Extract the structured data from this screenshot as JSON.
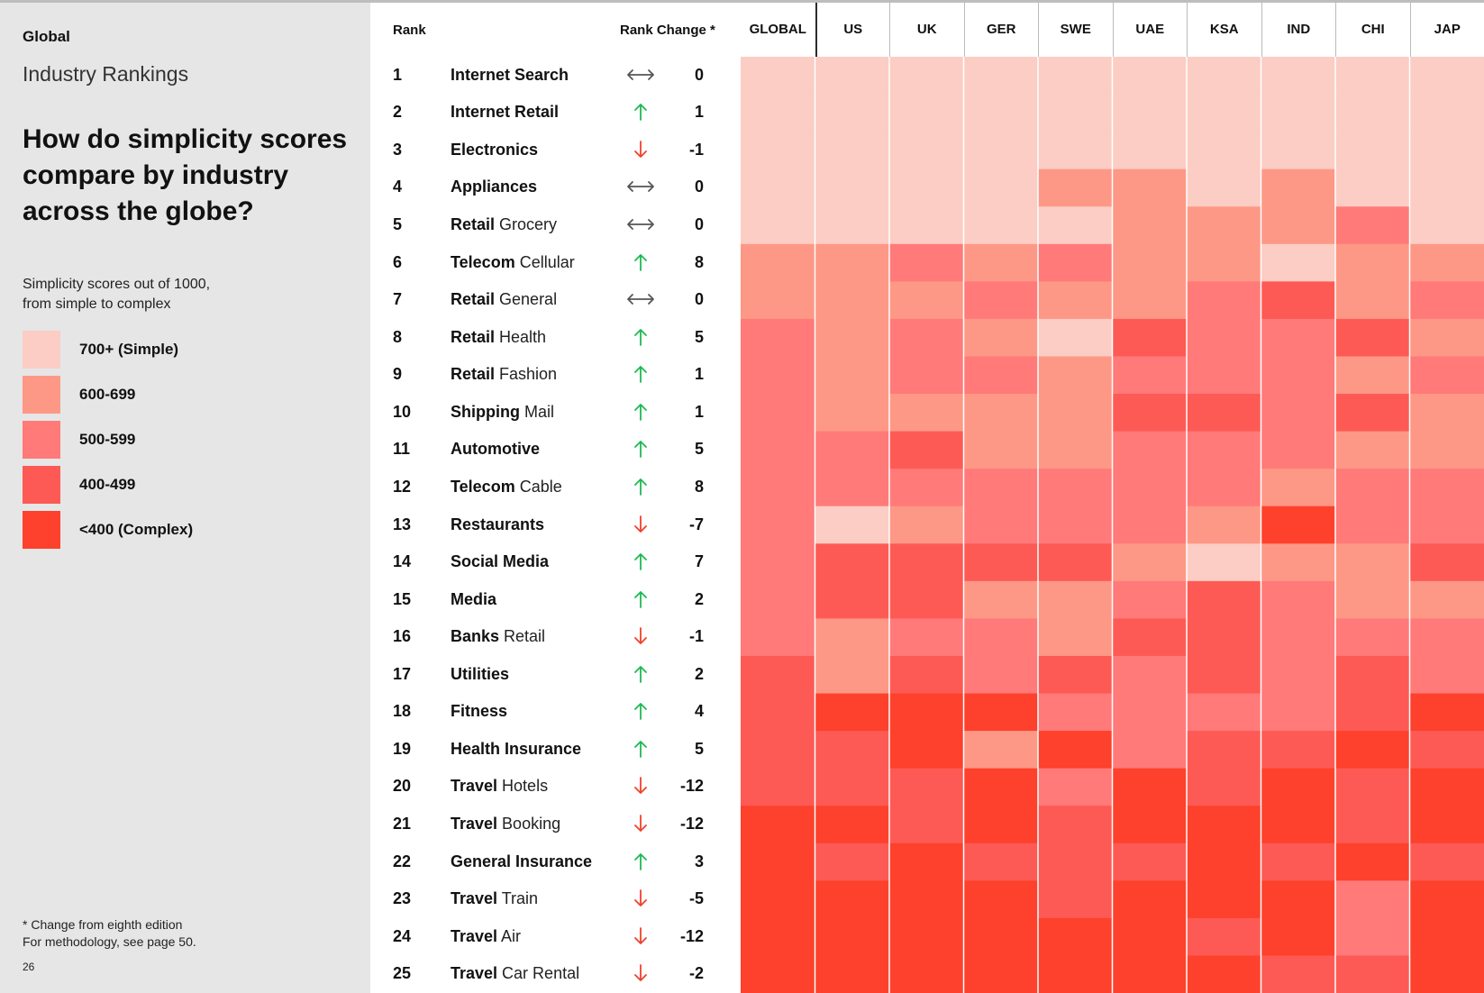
{
  "sidebar": {
    "region": "Global",
    "subtitle": "Industry Rankings",
    "question": "How do simplicity scores compare by industry across the globe?",
    "note_line1": "Simplicity scores out of 1000,",
    "note_line2": "from simple to complex",
    "footnote_line1": "* Change from eighth edition",
    "footnote_line2": "For methodology, see page 50.",
    "page_number": "26"
  },
  "legend": [
    {
      "label": "700+ (Simple)",
      "color": "#fbcdc4"
    },
    {
      "label": "600-699",
      "color": "#fe9886"
    },
    {
      "label": "500-599",
      "color": "#ff7a79"
    },
    {
      "label": "400-499",
      "color": "#fe5a55"
    },
    {
      "label": "<400 (Complex)",
      "color": "#fe412c"
    }
  ],
  "table": {
    "rank_header": "Rank",
    "change_header": "Rank Change *"
  },
  "chart_data": {
    "type": "heatmap",
    "title": "How do simplicity scores compare by industry across the globe?",
    "columns": [
      "GLOBAL",
      "US",
      "UK",
      "GER",
      "SWE",
      "UAE",
      "KSA",
      "IND",
      "CHI",
      "JAP"
    ],
    "categories_legend": [
      "700+ (Simple)",
      "600-699",
      "500-599",
      "400-499",
      "<400 (Complex)"
    ],
    "rows": [
      {
        "rank": "1",
        "name_bold": "Internet Search",
        "name_regular": "",
        "change": "0",
        "direction": "same",
        "levels": [
          0,
          0,
          0,
          0,
          0,
          0,
          0,
          0,
          0,
          0
        ]
      },
      {
        "rank": "2",
        "name_bold": "Internet Retail",
        "name_regular": "",
        "change": "1",
        "direction": "up",
        "levels": [
          0,
          0,
          0,
          0,
          0,
          0,
          0,
          0,
          0,
          0
        ]
      },
      {
        "rank": "3",
        "name_bold": "Electronics",
        "name_regular": "",
        "change": "-1",
        "direction": "down",
        "levels": [
          0,
          0,
          0,
          0,
          0,
          0,
          0,
          0,
          0,
          0
        ]
      },
      {
        "rank": "4",
        "name_bold": "Appliances",
        "name_regular": "",
        "change": "0",
        "direction": "same",
        "levels": [
          0,
          0,
          0,
          0,
          1,
          1,
          0,
          1,
          0,
          0
        ]
      },
      {
        "rank": "5",
        "name_bold": "Retail",
        "name_regular": " Grocery",
        "change": "0",
        "direction": "same",
        "levels": [
          0,
          0,
          0,
          0,
          0,
          1,
          1,
          1,
          2,
          0
        ]
      },
      {
        "rank": "6",
        "name_bold": "Telecom",
        "name_regular": " Cellular",
        "change": "8",
        "direction": "up",
        "levels": [
          1,
          1,
          2,
          1,
          2,
          1,
          1,
          0,
          1,
          1
        ]
      },
      {
        "rank": "7",
        "name_bold": "Retail",
        "name_regular": " General",
        "change": "0",
        "direction": "same",
        "levels": [
          1,
          1,
          1,
          2,
          1,
          1,
          2,
          3,
          1,
          2
        ]
      },
      {
        "rank": "8",
        "name_bold": "Retail",
        "name_regular": " Health",
        "change": "5",
        "direction": "up",
        "levels": [
          2,
          1,
          2,
          1,
          0,
          3,
          2,
          2,
          3,
          1
        ]
      },
      {
        "rank": "9",
        "name_bold": "Retail",
        "name_regular": " Fashion",
        "change": "1",
        "direction": "up",
        "levels": [
          2,
          1,
          2,
          2,
          1,
          2,
          2,
          2,
          1,
          2
        ]
      },
      {
        "rank": "10",
        "name_bold": "Shipping",
        "name_regular": " Mail",
        "change": "1",
        "direction": "up",
        "levels": [
          2,
          1,
          1,
          1,
          1,
          3,
          3,
          2,
          3,
          1
        ]
      },
      {
        "rank": "11",
        "name_bold": "Automotive",
        "name_regular": "",
        "change": "5",
        "direction": "up",
        "levels": [
          2,
          2,
          3,
          1,
          1,
          2,
          2,
          2,
          1,
          1
        ]
      },
      {
        "rank": "12",
        "name_bold": "Telecom",
        "name_regular": " Cable",
        "change": "8",
        "direction": "up",
        "levels": [
          2,
          2,
          2,
          2,
          2,
          2,
          2,
          1,
          2,
          2
        ]
      },
      {
        "rank": "13",
        "name_bold": "Restaurants",
        "name_regular": "",
        "change": "-7",
        "direction": "down",
        "levels": [
          2,
          0,
          1,
          2,
          2,
          2,
          1,
          4,
          2,
          2
        ]
      },
      {
        "rank": "14",
        "name_bold": "Social Media",
        "name_regular": "",
        "change": "7",
        "direction": "up",
        "levels": [
          2,
          3,
          3,
          3,
          3,
          1,
          0,
          1,
          1,
          3
        ]
      },
      {
        "rank": "15",
        "name_bold": "Media",
        "name_regular": "",
        "change": "2",
        "direction": "up",
        "levels": [
          2,
          3,
          3,
          1,
          1,
          2,
          3,
          2,
          1,
          1
        ]
      },
      {
        "rank": "16",
        "name_bold": "Banks",
        "name_regular": " Retail",
        "change": "-1",
        "direction": "down",
        "levels": [
          2,
          1,
          2,
          2,
          1,
          3,
          3,
          2,
          2,
          2
        ]
      },
      {
        "rank": "17",
        "name_bold": "Utilities",
        "name_regular": "",
        "change": "2",
        "direction": "up",
        "levels": [
          3,
          1,
          3,
          2,
          3,
          2,
          3,
          2,
          3,
          2
        ]
      },
      {
        "rank": "18",
        "name_bold": "Fitness",
        "name_regular": "",
        "change": "4",
        "direction": "up",
        "levels": [
          3,
          4,
          4,
          4,
          2,
          2,
          2,
          2,
          3,
          4
        ]
      },
      {
        "rank": "19",
        "name_bold": "Health Insurance",
        "name_regular": "",
        "change": "5",
        "direction": "up",
        "levels": [
          3,
          3,
          4,
          1,
          4,
          2,
          3,
          3,
          4,
          3
        ]
      },
      {
        "rank": "20",
        "name_bold": "Travel",
        "name_regular": " Hotels",
        "change": "-12",
        "direction": "down",
        "levels": [
          3,
          3,
          3,
          4,
          2,
          4,
          3,
          4,
          3,
          4
        ]
      },
      {
        "rank": "21",
        "name_bold": "Travel",
        "name_regular": " Booking",
        "change": "-12",
        "direction": "down",
        "levels": [
          4,
          4,
          3,
          4,
          3,
          4,
          4,
          4,
          3,
          4
        ]
      },
      {
        "rank": "22",
        "name_bold": "General Insurance",
        "name_regular": "",
        "change": "3",
        "direction": "up",
        "levels": [
          4,
          3,
          4,
          3,
          3,
          3,
          4,
          3,
          4,
          3
        ]
      },
      {
        "rank": "23",
        "name_bold": "Travel",
        "name_regular": " Train",
        "change": "-5",
        "direction": "down",
        "levels": [
          4,
          4,
          4,
          4,
          3,
          4,
          4,
          4,
          2,
          4
        ]
      },
      {
        "rank": "24",
        "name_bold": "Travel",
        "name_regular": " Air",
        "change": "-12",
        "direction": "down",
        "levels": [
          4,
          4,
          4,
          4,
          4,
          4,
          3,
          4,
          2,
          4
        ]
      },
      {
        "rank": "25",
        "name_bold": "Travel",
        "name_regular": " Car Rental",
        "change": "-2",
        "direction": "down",
        "levels": [
          4,
          4,
          4,
          4,
          4,
          4,
          4,
          3,
          3,
          4
        ]
      }
    ]
  },
  "colors": {
    "levels": [
      "#fbcdc4",
      "#fe9886",
      "#ff7a79",
      "#fe5a55",
      "#fe412c"
    ],
    "arrow_up": "#1db954",
    "arrow_down": "#f0412c",
    "arrow_same": "#555555"
  }
}
